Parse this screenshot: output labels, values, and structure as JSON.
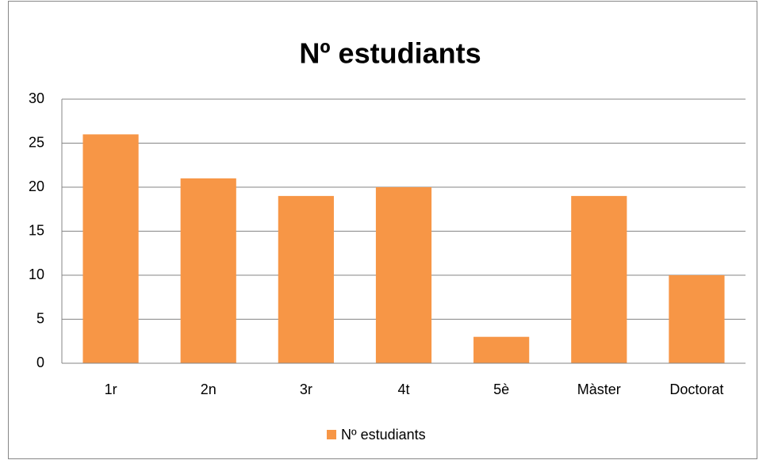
{
  "chart_data": {
    "type": "bar",
    "title": "Nº estudiants",
    "categories": [
      "1r",
      "2n",
      "3r",
      "4t",
      "5è",
      "Màster",
      "Doctorat"
    ],
    "series": [
      {
        "name": "Nº estudiants",
        "color": "#f79646",
        "values": [
          26,
          21,
          19,
          20,
          3,
          19,
          10
        ]
      }
    ],
    "ylim": [
      0,
      30
    ],
    "yticks": [
      0,
      5,
      10,
      15,
      20,
      25,
      30
    ],
    "grid": true,
    "legend": "bottom"
  }
}
